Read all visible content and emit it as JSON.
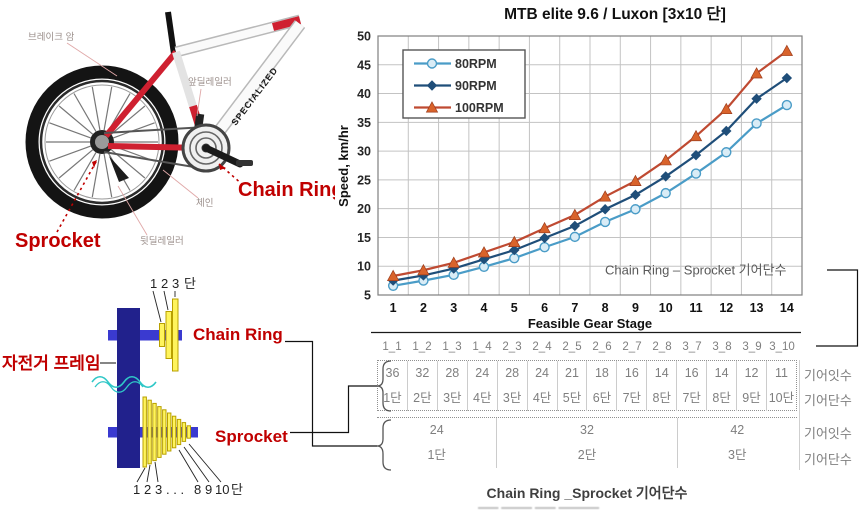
{
  "chart_data": {
    "type": "line",
    "title": "MTB elite 9.6 / Luxon [3x10 단]",
    "xlabel": "Feasible Gear Stage",
    "ylabel": "Speed, km/hr",
    "x": [
      1,
      2,
      3,
      4,
      5,
      6,
      7,
      8,
      9,
      10,
      11,
      12,
      13,
      14
    ],
    "ylim": [
      5,
      50
    ],
    "ytick": 5,
    "grid": true,
    "legend_position": "top-left",
    "annotation": "Chain Ring – Sprocket 기어단수",
    "series": [
      {
        "name": "80RPM",
        "marker": "circle",
        "line": "#4a9cc7",
        "fill": "#d9ecf6",
        "values": [
          6.6,
          7.5,
          8.5,
          9.9,
          11.4,
          13.3,
          15.1,
          17.7,
          19.9,
          22.7,
          26.1,
          29.8,
          34.8,
          38.0
        ]
      },
      {
        "name": "90RPM",
        "marker": "diamond",
        "line": "#1f4e79",
        "fill": "#1f4e79",
        "values": [
          7.5,
          8.4,
          9.6,
          11.2,
          12.8,
          14.9,
          17.0,
          19.9,
          22.4,
          25.6,
          29.3,
          33.5,
          39.1,
          42.7
        ]
      },
      {
        "name": "100RPM",
        "marker": "triangle",
        "line": "#bf4a32",
        "fill": "#d9632b",
        "values": [
          8.3,
          9.3,
          10.6,
          12.4,
          14.2,
          16.6,
          18.9,
          22.1,
          24.8,
          28.4,
          32.6,
          37.3,
          43.5,
          47.4
        ]
      }
    ]
  },
  "bike_figure": {
    "labels": {
      "brake_arm": "브레이크 암",
      "front_derailleur": "앞딜레일러",
      "chain": "체인",
      "rear_derailleur": "뒷딜레일러",
      "sprocket": "Sprocket",
      "chain_ring": "Chain Ring"
    }
  },
  "schematic": {
    "frame_label": "자전거 프레임",
    "chain_ring_label": "Chain Ring",
    "sprocket_label": "Sprocket",
    "top_digits": [
      "1",
      "2",
      "3"
    ],
    "top_suffix": "단",
    "bottom_digits": [
      "1",
      "2",
      "3",
      ". . .",
      "8",
      "9",
      "10"
    ],
    "bottom_suffix": "단"
  },
  "table": {
    "combos": [
      "1_1",
      "1_2",
      "1_3",
      "1_4",
      "2_3",
      "2_4",
      "2_5",
      "2_6",
      "2_7",
      "2_8",
      "3_7",
      "3_8",
      "3_9",
      "3_10"
    ],
    "sprocket": {
      "teeth": [
        "36",
        "32",
        "28",
        "24",
        "28",
        "24",
        "21",
        "18",
        "16",
        "14",
        "16",
        "14",
        "12",
        "11"
      ],
      "stages": [
        "1단",
        "2단",
        "3단",
        "4단",
        "3단",
        "4단",
        "5단",
        "6단",
        "7단",
        "8단",
        "7단",
        "8단",
        "9단",
        "10단"
      ],
      "teeth_label": "기어잇수",
      "stages_label": "기어단수"
    },
    "chainring": {
      "teeth": [
        "24",
        "32",
        "42"
      ],
      "stages": [
        "1단",
        "2단",
        "3단"
      ],
      "spans": [
        4,
        6,
        4
      ],
      "teeth_label": "기어잇수",
      "stages_label": "기어단수"
    },
    "caption": "Chain Ring _Sprocket 기어단수"
  },
  "colors": {
    "accent_red": "#c00000",
    "frame_navy": "#21218c",
    "axle_blue": "#3a3ad0",
    "gear_yellow": "#fff45c",
    "wave_cyan": "#2fc7c7",
    "grid_gray": "#c3c3c3"
  }
}
